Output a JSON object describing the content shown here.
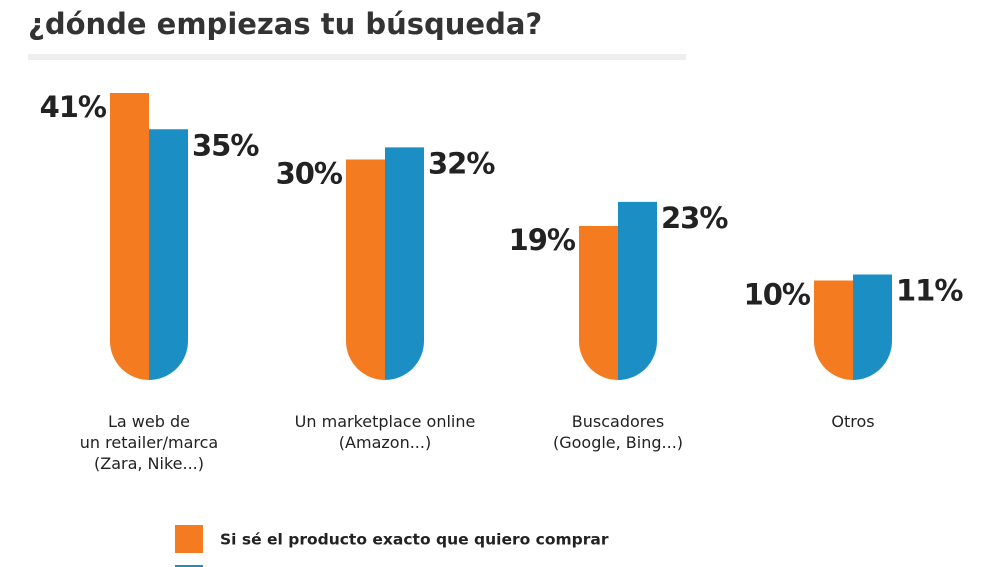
{
  "chart_data": {
    "type": "bar",
    "title": "¿dónde empiezas tu búsqueda?",
    "categories": [
      "La web de\nun retailer/marca\n(Zara, Nike...)",
      "Un marketplace online\n(Amazon...)",
      "Buscadores\n(Google, Bing...)",
      "Otros"
    ],
    "series": [
      {
        "name": "Si sé el producto exacto que quiero comprar",
        "color": "#f47b20",
        "values": [
          41,
          30,
          19,
          10
        ],
        "value_labels": [
          "41%",
          "30%",
          "19%",
          "10%"
        ]
      },
      {
        "color": "#1b8fc4",
        "values": [
          35,
          32,
          23,
          11
        ],
        "value_labels": [
          "35%",
          "32%",
          "23%",
          "11%"
        ]
      }
    ]
  }
}
